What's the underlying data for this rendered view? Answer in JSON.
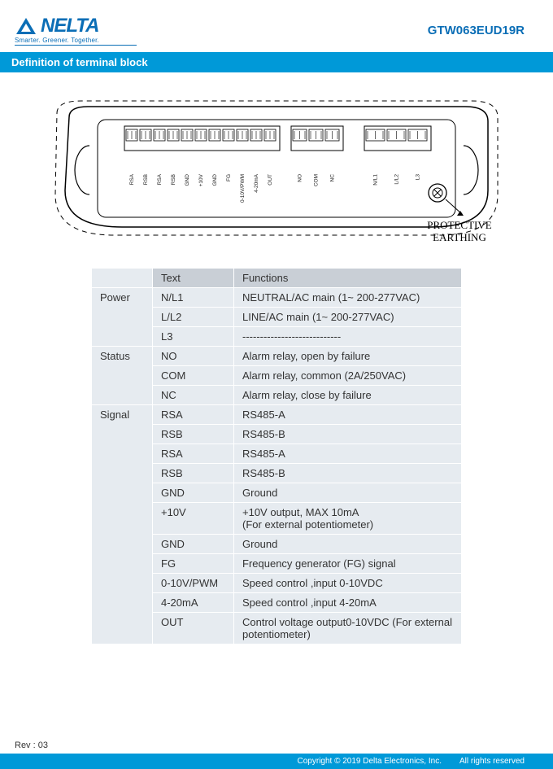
{
  "header": {
    "brand": "NELTA",
    "tagline": "Smarter.  Greener.  Together.",
    "model": "GTW063EUD19R"
  },
  "section_title": "Definition of terminal block",
  "diagram": {
    "earthing_label_1": "PROTECTIVE",
    "earthing_label_2": "EARTHING",
    "pins_left": [
      "RSA",
      "RSB",
      "RSA",
      "RSB",
      "GND",
      "+10V",
      "GND",
      "FG",
      "0-10V/PWM",
      "4-20mA",
      "OUT"
    ],
    "pins_mid": [
      "NO",
      "COM",
      "NC"
    ],
    "pins_right": [
      "N/L1",
      "L/L2",
      "L3"
    ],
    "outline_stroke": "#000000",
    "block_stroke": "#000000",
    "tooth_stroke": "#000000"
  },
  "table": {
    "headers": {
      "blank": "",
      "text": "Text",
      "functions": "Functions"
    },
    "groups": [
      {
        "category": "Power",
        "rows": [
          {
            "text": "N/L1",
            "fn": "NEUTRAL/AC main (1~ 200-277VAC)"
          },
          {
            "text": "L/L2",
            "fn": "LINE/AC main (1~ 200-277VAC)"
          },
          {
            "text": "L3",
            "fn": "----------------------------"
          }
        ]
      },
      {
        "category": "Status",
        "rows": [
          {
            "text": "NO",
            "fn": "Alarm relay, open by failure"
          },
          {
            "text": "COM",
            "fn": "Alarm relay, common (2A/250VAC)"
          },
          {
            "text": "NC",
            "fn": "Alarm relay, close by failure"
          }
        ]
      },
      {
        "category": "Signal",
        "rows": [
          {
            "text": "RSA",
            "fn": "RS485-A"
          },
          {
            "text": "RSB",
            "fn": "RS485-B"
          },
          {
            "text": "RSA",
            "fn": "RS485-A"
          },
          {
            "text": "RSB",
            "fn": "RS485-B"
          },
          {
            "text": "GND",
            "fn": "Ground"
          },
          {
            "text": "+10V",
            "fn": "+10V output, MAX 10mA\n(For external potentiometer)"
          },
          {
            "text": "GND",
            "fn": "Ground"
          },
          {
            "text": "FG",
            "fn": "Frequency generator (FG) signal"
          },
          {
            "text": "0-10V/PWM",
            "fn": "Speed control ,input 0-10VDC"
          },
          {
            "text": "4-20mA",
            "fn": "Speed control ,input 4-20mA"
          },
          {
            "text": "OUT",
            "fn": "Control voltage output0-10VDC (For external potentiometer)"
          }
        ]
      }
    ]
  },
  "footer": {
    "rev": "Rev : 03",
    "copyright": "Copyright © 2019 Delta Electronics, Inc.",
    "rights": "All rights reserved"
  },
  "colors": {
    "brand_blue": "#0b6eb6",
    "bar_blue": "#0099d8",
    "th_bg": "#c9cfd6",
    "td_bg": "#e6ebf0",
    "text": "#333333"
  }
}
